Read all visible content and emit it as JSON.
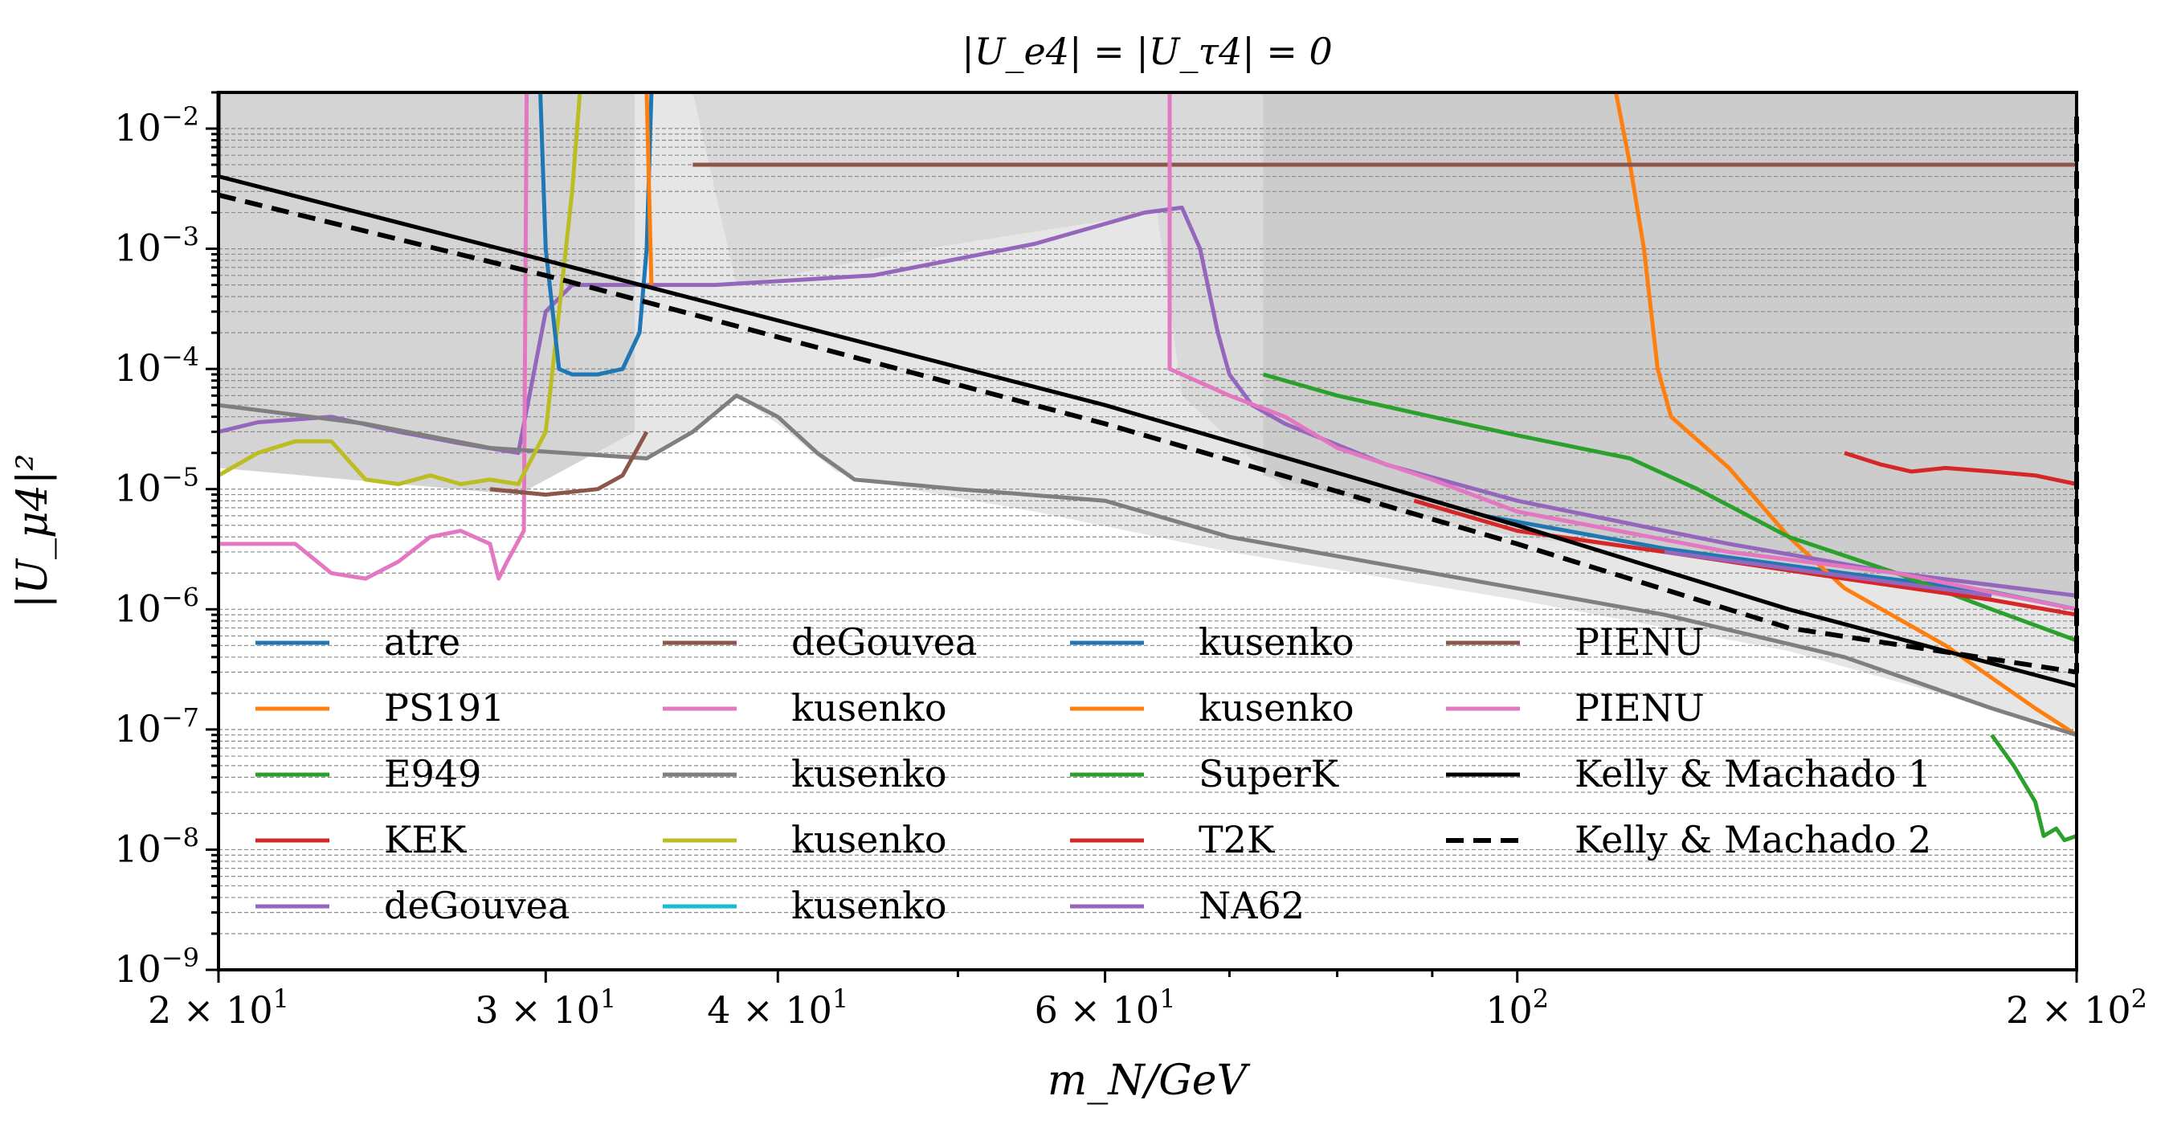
{
  "chart_data": {
    "type": "line",
    "title": "|U_e4| = |U_τ4| = 0",
    "xlabel": "m_N/GeV",
    "ylabel": "|U_μ4|²",
    "xscale": "log",
    "yscale": "log",
    "xlim": [
      20,
      200
    ],
    "ylim": [
      1e-09,
      0.02
    ],
    "grid": "horizontal minor dashed",
    "legend_placement": "lower-left, 4 columns",
    "x_ticks": [
      {
        "value": 20,
        "label": "2 × 10¹"
      },
      {
        "value": 30,
        "label": "3 × 10¹"
      },
      {
        "value": 40,
        "label": "4 × 10¹"
      },
      {
        "value": 60,
        "label": "6 × 10¹"
      },
      {
        "value": 100,
        "label": "10²"
      },
      {
        "value": 200,
        "label": "2 × 10²"
      }
    ],
    "y_ticks": [
      {
        "value": 0.01,
        "label": "10⁻²"
      },
      {
        "value": 0.001,
        "label": "10⁻³"
      },
      {
        "value": 0.0001,
        "label": "10⁻⁴"
      },
      {
        "value": 1e-05,
        "label": "10⁻⁵"
      },
      {
        "value": 1e-06,
        "label": "10⁻⁶"
      },
      {
        "value": 1e-07,
        "label": "10⁻⁷"
      },
      {
        "value": 1e-08,
        "label": "10⁻⁸"
      },
      {
        "value": 1e-09,
        "label": "10⁻⁹"
      }
    ],
    "shaded_regions": [
      {
        "color": "#e6e6e6",
        "points": [
          [
            20,
            0.02
          ],
          [
            200,
            0.02
          ],
          [
            200,
            1e-07
          ],
          [
            180,
            1.5e-07
          ],
          [
            140,
            4.5e-07
          ],
          [
            100,
            1.2e-06
          ],
          [
            70,
            3e-06
          ],
          [
            55,
            6.5e-06
          ],
          [
            47,
            1e-05
          ],
          [
            43,
            1.4e-05
          ],
          [
            40,
            3.5e-05
          ],
          [
            38,
            6e-05
          ],
          [
            36,
            3e-05
          ],
          [
            34,
            1.8e-05
          ],
          [
            30,
            2.2e-05
          ],
          [
            25,
            3e-05
          ],
          [
            22,
            4e-05
          ],
          [
            20,
            5e-05
          ]
        ]
      },
      {
        "color": "#d4d4d4",
        "points": [
          [
            20,
            0.02
          ],
          [
            33.5,
            0.02
          ],
          [
            33.5,
            3e-05
          ],
          [
            29,
            9e-06
          ],
          [
            20,
            1.5e-05
          ]
        ]
      },
      {
        "color": "#d9d9d9",
        "points": [
          [
            36,
            0.02
          ],
          [
            200,
            0.02
          ],
          [
            200,
            1e-06
          ],
          [
            150,
            2e-06
          ],
          [
            100,
            4e-06
          ],
          [
            75,
            1e-05
          ],
          [
            66,
            6e-05
          ],
          [
            64,
            0.002
          ],
          [
            48,
            0.001
          ],
          [
            38,
            0.0005
          ]
        ]
      },
      {
        "color": "#cccccc",
        "points": [
          [
            73,
            0.02
          ],
          [
            200,
            0.02
          ],
          [
            200,
            1e-06
          ],
          [
            180,
            1.3e-06
          ],
          [
            150,
            1.9e-06
          ],
          [
            120,
            3.3e-06
          ],
          [
            100,
            5e-06
          ],
          [
            80,
            9e-06
          ],
          [
            73,
            1.3e-05
          ]
        ]
      }
    ],
    "series": [
      {
        "name": "atre",
        "color": "#1f77b4",
        "dash": false,
        "points": [
          [
            96,
            6e-06
          ],
          [
            120,
            3.2e-06
          ],
          [
            150,
            2e-06
          ],
          [
            180,
            1.4e-06
          ],
          [
            200,
            1e-06
          ]
        ]
      },
      {
        "name": "PS191",
        "color": "#ff7f0e",
        "dash": false,
        "points": [
          [
            113,
            0.02
          ],
          [
            115,
            0.005
          ],
          [
            117,
            0.001
          ],
          [
            119,
            0.0001
          ],
          [
            121,
            4e-05
          ],
          [
            130,
            1.5e-05
          ],
          [
            140,
            4e-06
          ],
          [
            150,
            1.5e-06
          ],
          [
            170,
            5e-07
          ],
          [
            190,
            1.5e-07
          ],
          [
            200,
            9e-08
          ]
        ]
      },
      {
        "name": "E949",
        "color": "#2ca02c",
        "dash": false,
        "points": [
          [
            180,
            9e-08
          ],
          [
            185,
            5e-08
          ],
          [
            190,
            2.5e-08
          ],
          [
            192,
            1.3e-08
          ],
          [
            195,
            1.5e-08
          ],
          [
            197,
            1.2e-08
          ],
          [
            200,
            1.3e-08
          ]
        ]
      },
      {
        "name": "KEK",
        "color": "#d62728",
        "dash": false,
        "points": [
          [
            150,
            2e-05
          ],
          [
            157,
            1.6e-05
          ],
          [
            163,
            1.4e-05
          ],
          [
            170,
            1.5e-05
          ],
          [
            180,
            1.4e-05
          ],
          [
            190,
            1.3e-05
          ],
          [
            200,
            1.1e-05
          ]
        ]
      },
      {
        "name": "deGouvea",
        "color": "#9467bd",
        "dash": false,
        "points": [
          [
            20,
            3e-05
          ],
          [
            21,
            3.6e-05
          ],
          [
            23,
            4e-05
          ],
          [
            25,
            3e-05
          ],
          [
            27,
            2.4e-05
          ],
          [
            29,
            2e-05
          ],
          [
            30,
            0.0003
          ],
          [
            31,
            0.0005
          ],
          [
            33,
            0.0005
          ],
          [
            37,
            0.0005
          ],
          [
            45,
            0.0006
          ],
          [
            55,
            0.0011
          ],
          [
            63,
            0.002
          ],
          [
            66,
            0.0022
          ],
          [
            67.5,
            0.001
          ],
          [
            69,
            0.0002
          ],
          [
            70,
            9e-05
          ],
          [
            72,
            5e-05
          ],
          [
            75,
            3.5e-05
          ],
          [
            85,
            1.6e-05
          ],
          [
            100,
            8e-06
          ],
          [
            130,
            3.5e-06
          ],
          [
            160,
            2e-06
          ],
          [
            200,
            1.3e-06
          ]
        ]
      },
      {
        "name": "deGouvea",
        "color": "#8c564b",
        "dash": false,
        "points": [
          [
            36,
            0.005
          ],
          [
            200,
            0.005
          ]
        ]
      },
      {
        "name": "kusenko",
        "color": "#e377c2",
        "dash": false,
        "points": [
          [
            20,
            3.5e-06
          ],
          [
            22,
            3.5e-06
          ],
          [
            23,
            2e-06
          ],
          [
            24,
            1.8e-06
          ],
          [
            25,
            2.5e-06
          ],
          [
            26,
            4e-06
          ],
          [
            27,
            4.5e-06
          ],
          [
            28,
            3.5e-06
          ],
          [
            28.3,
            1.8e-06
          ],
          [
            28.6,
            2.5e-06
          ],
          [
            29.2,
            4.5e-06
          ],
          [
            29.3,
            0.02
          ]
        ]
      },
      {
        "name": "kusenko",
        "color": "#7f7f7f",
        "dash": false,
        "points": [
          [
            20,
            5e-05
          ],
          [
            24,
            3.5e-05
          ],
          [
            28,
            2.2e-05
          ],
          [
            34,
            1.8e-05
          ],
          [
            36,
            3e-05
          ],
          [
            38,
            6e-05
          ],
          [
            40,
            4e-05
          ],
          [
            42,
            2e-05
          ],
          [
            44,
            1.2e-05
          ],
          [
            50,
            1e-05
          ],
          [
            60,
            8e-06
          ],
          [
            70,
            4e-06
          ],
          [
            90,
            2e-06
          ],
          [
            120,
            9e-07
          ],
          [
            150,
            4e-07
          ],
          [
            180,
            1.5e-07
          ],
          [
            200,
            9e-08
          ]
        ]
      },
      {
        "name": "kusenko",
        "color": "#bcbd22",
        "dash": false,
        "points": [
          [
            20,
            1.3e-05
          ],
          [
            21,
            2e-05
          ],
          [
            22,
            2.5e-05
          ],
          [
            23,
            2.5e-05
          ],
          [
            24,
            1.2e-05
          ],
          [
            25,
            1.1e-05
          ],
          [
            26,
            1.3e-05
          ],
          [
            27,
            1.1e-05
          ],
          [
            28,
            1.2e-05
          ],
          [
            29,
            1.1e-05
          ],
          [
            30,
            3e-05
          ],
          [
            30.5,
            0.0003
          ],
          [
            31,
            0.003
          ],
          [
            31.3,
            0.02
          ]
        ]
      },
      {
        "name": "kusenko",
        "color": "#17becf",
        "dash": false,
        "points": []
      },
      {
        "name": "kusenko",
        "color": "#1f77b4",
        "dash": false,
        "points": [
          [
            29.8,
            0.02
          ],
          [
            30,
            0.001
          ],
          [
            30.5,
            0.0001
          ],
          [
            31,
            9e-05
          ],
          [
            32,
            9e-05
          ],
          [
            33,
            0.0001
          ],
          [
            33.7,
            0.0002
          ],
          [
            34,
            0.001
          ],
          [
            34.2,
            0.02
          ]
        ]
      },
      {
        "name": "kusenko",
        "color": "#ff7f0e",
        "dash": false,
        "points": [
          [
            34,
            0.02
          ],
          [
            34.2,
            0.0005
          ]
        ]
      },
      {
        "name": "SuperK",
        "color": "#2ca02c",
        "dash": false,
        "points": [
          [
            73,
            9e-05
          ],
          [
            80,
            6e-05
          ],
          [
            90,
            4e-05
          ],
          [
            100,
            2.8e-05
          ],
          [
            115,
            1.8e-05
          ],
          [
            125,
            1e-05
          ],
          [
            140,
            4e-06
          ],
          [
            160,
            2e-06
          ],
          [
            180,
            1e-06
          ],
          [
            200,
            5.5e-07
          ]
        ]
      },
      {
        "name": "T2K",
        "color": "#d62728",
        "dash": false,
        "points": [
          [
            88,
            8e-06
          ],
          [
            100,
            4.5e-06
          ],
          [
            120,
            3e-06
          ],
          [
            150,
            1.8e-06
          ],
          [
            180,
            1.2e-06
          ],
          [
            200,
            9e-07
          ]
        ]
      },
      {
        "name": "NA62",
        "color": "#9467bd",
        "dash": false,
        "points": [
          [
            120,
            3e-06
          ],
          [
            180,
            1.3e-06
          ]
        ]
      },
      {
        "name": "PIENU",
        "color": "#8c564b",
        "dash": false,
        "points": [
          [
            28,
            1e-05
          ],
          [
            30,
            9e-06
          ],
          [
            32,
            1e-05
          ],
          [
            33,
            1.3e-05
          ],
          [
            34,
            3e-05
          ]
        ]
      },
      {
        "name": "PIENU",
        "color": "#e377c2",
        "dash": false,
        "points": [
          [
            65,
            0.02
          ],
          [
            65,
            0.0001
          ],
          [
            70,
            6e-05
          ],
          [
            75,
            4e-05
          ],
          [
            80,
            2.2e-05
          ],
          [
            90,
            1.2e-05
          ],
          [
            100,
            6.5e-06
          ],
          [
            130,
            3e-06
          ],
          [
            160,
            2e-06
          ],
          [
            200,
            1e-06
          ]
        ]
      },
      {
        "name": "Kelly & Machado 1",
        "color": "#000000",
        "dash": false,
        "points": [
          [
            20,
            0.02
          ],
          [
            20,
            0.004
          ],
          [
            30,
            0.0008
          ],
          [
            60,
            5e-05
          ],
          [
            100,
            5e-06
          ],
          [
            140,
            1e-06
          ],
          [
            200,
            2.3e-07
          ]
        ]
      },
      {
        "name": "Kelly & Machado 2",
        "color": "#000000",
        "dash": true,
        "points": [
          [
            20,
            0.0028
          ],
          [
            30,
            0.0006
          ],
          [
            60,
            3.5e-05
          ],
          [
            100,
            3.5e-06
          ],
          [
            140,
            7e-07
          ],
          [
            200,
            3e-07
          ],
          [
            200,
            0.015
          ]
        ]
      }
    ]
  }
}
